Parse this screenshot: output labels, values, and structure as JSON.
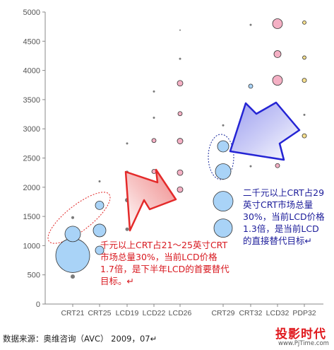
{
  "chart_data": {
    "type": "scatter",
    "categories": [
      "CRT21",
      "CRT25",
      "LCD19",
      "LCD22",
      "LCD26",
      "CRT29",
      "CRT32",
      "LCD32",
      "PDP32"
    ],
    "ylim": [
      0,
      5000
    ],
    "yticks": [
      0,
      500,
      1000,
      1500,
      2000,
      2500,
      3000,
      3500,
      4000,
      4500,
      5000
    ],
    "grid": false,
    "legend": "none",
    "points": [
      {
        "category": "CRT21",
        "y": 470,
        "size": 3
      },
      {
        "category": "CRT21",
        "y": 830,
        "size": 24,
        "fill": "#a9d3f7"
      },
      {
        "category": "CRT21",
        "y": 1200,
        "size": 11,
        "fill": "#a9d3f7"
      },
      {
        "category": "CRT21",
        "y": 1480,
        "size": 2
      },
      {
        "category": "CRT25",
        "y": 920,
        "size": 6,
        "fill": "#a9d3f7"
      },
      {
        "category": "CRT25",
        "y": 1260,
        "size": 9,
        "fill": "#a9d3f7"
      },
      {
        "category": "CRT25",
        "y": 1690,
        "size": 6,
        "fill": "#a9d3f7"
      },
      {
        "category": "CRT25",
        "y": 2100,
        "size": 1.5
      },
      {
        "category": "LCD19",
        "y": 1280,
        "size": 2.5
      },
      {
        "category": "LCD19",
        "y": 1780,
        "size": 3
      },
      {
        "category": "LCD19",
        "y": 2260,
        "size": 2
      },
      {
        "category": "LCD19",
        "y": 2750,
        "size": 1.5
      },
      {
        "category": "LCD22",
        "y": 1790,
        "size": 4,
        "fill": "#f4b0c4"
      },
      {
        "category": "LCD22",
        "y": 2270,
        "size": 3,
        "fill": "#f4b0c4"
      },
      {
        "category": "LCD22",
        "y": 2800,
        "size": 3,
        "fill": "#f4b0c4"
      },
      {
        "category": "LCD22",
        "y": 3190,
        "size": 1.5
      },
      {
        "category": "LCD22",
        "y": 3640,
        "size": 1.5
      },
      {
        "category": "LCD26",
        "y": 1960,
        "size": 4,
        "fill": "#f4b0c4"
      },
      {
        "category": "LCD26",
        "y": 2250,
        "size": 4,
        "fill": "#f4b0c4"
      },
      {
        "category": "LCD26",
        "y": 2790,
        "size": 4,
        "fill": "#f4b0c4"
      },
      {
        "category": "LCD26",
        "y": 3260,
        "size": 3,
        "fill": "#f4b0c4"
      },
      {
        "category": "LCD26",
        "y": 3780,
        "size": 4,
        "fill": "#f4b0c4"
      },
      {
        "category": "LCD26",
        "y": 4200,
        "size": 1.5
      },
      {
        "category": "LCD26",
        "y": 4690,
        "size": 1
      },
      {
        "category": "CRT29",
        "y": 1300,
        "size": 13,
        "fill": "#a9d3f7"
      },
      {
        "category": "CRT29",
        "y": 1760,
        "size": 14,
        "fill": "#a9d3f7"
      },
      {
        "category": "CRT29",
        "y": 2270,
        "size": 11,
        "fill": "#a9d3f7"
      },
      {
        "category": "CRT29",
        "y": 2700,
        "size": 8,
        "fill": "#a9d3f7"
      },
      {
        "category": "CRT29",
        "y": 3060,
        "size": 1.5
      },
      {
        "category": "CRT32",
        "y": 2360,
        "size": 1.5
      },
      {
        "category": "CRT32",
        "y": 2850,
        "size": 2,
        "fill": "#a9d3f7"
      },
      {
        "category": "CRT32",
        "y": 3730,
        "size": 3,
        "fill": "#a9d3f7"
      },
      {
        "category": "CRT32",
        "y": 4780,
        "size": 1.5
      },
      {
        "category": "LCD32",
        "y": 2370,
        "size": 3,
        "fill": "#f4b0c4"
      },
      {
        "category": "LCD32",
        "y": 2830,
        "size": 7,
        "fill": "#f4b0c4"
      },
      {
        "category": "LCD32",
        "y": 3260,
        "size": 5,
        "fill": "#f4b0c4"
      },
      {
        "category": "LCD32",
        "y": 3830,
        "size": 7,
        "fill": "#f4b0c4"
      },
      {
        "category": "LCD32",
        "y": 4280,
        "size": 5,
        "fill": "#f4b0c4"
      },
      {
        "category": "LCD32",
        "y": 4800,
        "size": 7,
        "fill": "#f4b0c4"
      },
      {
        "category": "PDP32",
        "y": 2880,
        "size": 3,
        "fill": "#f7e08e"
      },
      {
        "category": "PDP32",
        "y": 3240,
        "size": 1.5
      },
      {
        "category": "PDP32",
        "y": 3830,
        "size": 3,
        "fill": "#f7e08e"
      },
      {
        "category": "PDP32",
        "y": 4220,
        "size": 2.5,
        "fill": "#f7e08e"
      },
      {
        "category": "PDP32",
        "y": 4820,
        "size": 2.5,
        "fill": "#f7e08e"
      }
    ],
    "annotations": [
      {
        "id": "red",
        "text": "千元以上CRT占21～25英寸CRT市场总量30%，当前LCD价格1.7倍，是下半年LCD的首要替代目标。↵",
        "color": "#d8181f"
      },
      {
        "id": "blue",
        "text": "二千元以上CRT占29英寸CRT市场总量30%，当前LCD价格1.3倍，是当前LCD的直接替代目标↵",
        "color": "#1c1c9a"
      }
    ]
  },
  "source": "数据来源：奥维咨询（AVC） 2009，07↵",
  "logo": {
    "name": "投影时代",
    "url": "www.PjTime.com"
  },
  "colors": {
    "crt": "#a9d3f7",
    "lcd": "#f4b0c4",
    "pdp": "#f7e08e",
    "red_arrow": "#ef2d2d",
    "blue_arrow": "#1f1fd0"
  }
}
